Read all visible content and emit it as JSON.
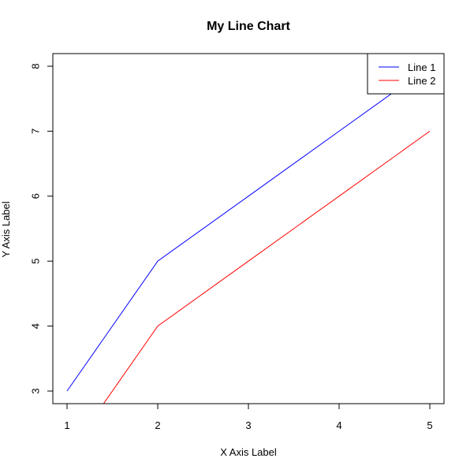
{
  "chart_data": {
    "type": "line",
    "title": "My Line Chart",
    "xlabel": "X Axis Label",
    "ylabel": "Y Axis Label",
    "xlim": [
      1,
      5
    ],
    "ylim": [
      3,
      8
    ],
    "x_ticks": [
      1,
      2,
      3,
      4,
      5
    ],
    "y_ticks": [
      3,
      4,
      5,
      6,
      7,
      8
    ],
    "grid": false,
    "legend": {
      "position": "top-right"
    },
    "series": [
      {
        "name": "Line 1",
        "color": "#0000ff",
        "x": [
          1,
          2,
          3,
          4,
          5
        ],
        "y": [
          3,
          5,
          6,
          7,
          8
        ]
      },
      {
        "name": "Line 2",
        "color": "#ff0000",
        "x": [
          1,
          2,
          3,
          4,
          5
        ],
        "y": [
          2,
          4,
          5,
          6,
          7
        ]
      }
    ]
  }
}
